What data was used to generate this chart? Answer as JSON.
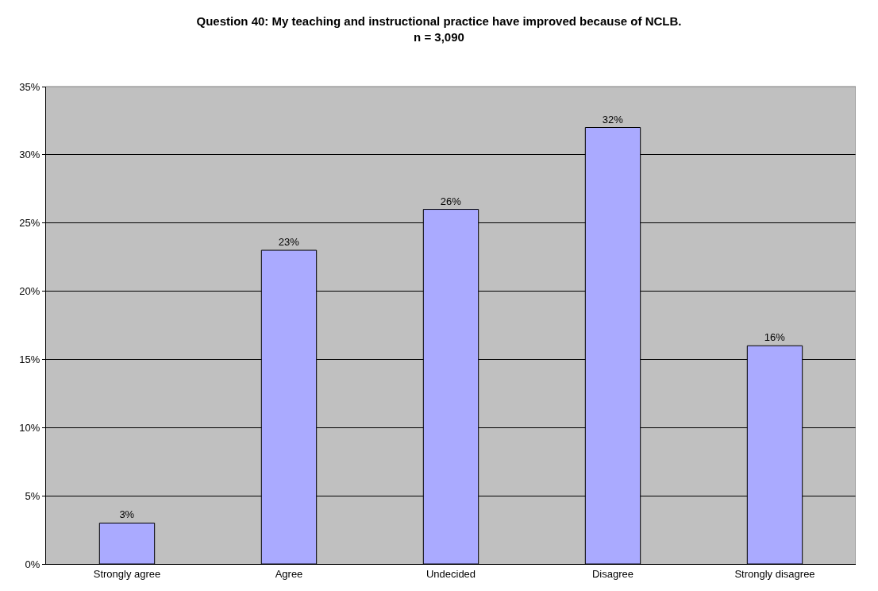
{
  "chart_data": {
    "type": "bar",
    "title": "Question 40: My teaching and instructional practice have improved because of NCLB.",
    "subtitle": "n = 3,090",
    "categories": [
      "Strongly agree",
      "Agree",
      "Undecided",
      "Disagree",
      "Strongly disagree"
    ],
    "values": [
      3,
      23,
      26,
      32,
      16
    ],
    "value_labels": [
      "3%",
      "23%",
      "26%",
      "32%",
      "16%"
    ],
    "color": "#aaaaff",
    "ylim": [
      0,
      35
    ],
    "yticks": [
      {
        "value": 0,
        "label": "0%"
      },
      {
        "value": 5,
        "label": "5%"
      },
      {
        "value": 10,
        "label": "10%"
      },
      {
        "value": 15,
        "label": "15%"
      },
      {
        "value": 20,
        "label": "20%"
      },
      {
        "value": 25,
        "label": "25%"
      },
      {
        "value": 30,
        "label": "30%"
      },
      {
        "value": 35,
        "label": "35%"
      }
    ],
    "grid": "y"
  }
}
